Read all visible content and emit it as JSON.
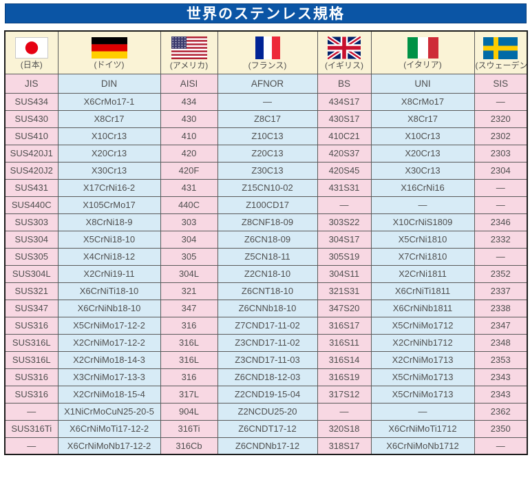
{
  "title": "世界のステンレス規格",
  "columns": [
    {
      "code": "JIS",
      "country": "(日本)",
      "flag": "japan-flag",
      "tint": "pink"
    },
    {
      "code": "DIN",
      "country": "(ドイツ)",
      "flag": "germany-flag",
      "tint": "blue"
    },
    {
      "code": "AISI",
      "country": "(アメリカ)",
      "flag": "usa-flag",
      "tint": "pink"
    },
    {
      "code": "AFNOR",
      "country": "(フランス)",
      "flag": "france-flag",
      "tint": "blue"
    },
    {
      "code": "BS",
      "country": "(イギリス)",
      "flag": "uk-flag",
      "tint": "pink"
    },
    {
      "code": "UNI",
      "country": "(イタリア)",
      "flag": "italy-flag",
      "tint": "blue"
    },
    {
      "code": "SIS",
      "country": "(スウェーデン)",
      "flag": "sweden-flag",
      "tint": "pink"
    }
  ],
  "rows": [
    [
      "SUS434",
      "X6CrMo17-1",
      "434",
      "—",
      "434S17",
      "X8CrMo17",
      "—"
    ],
    [
      "SUS430",
      "X8Cr17",
      "430",
      "Z8C17",
      "430S17",
      "X8Cr17",
      "2320"
    ],
    [
      "SUS410",
      "X10Cr13",
      "410",
      "Z10C13",
      "410C21",
      "X10Cr13",
      "2302"
    ],
    [
      "SUS420J1",
      "X20Cr13",
      "420",
      "Z20C13",
      "420S37",
      "X20Cr13",
      "2303"
    ],
    [
      "SUS420J2",
      "X30Cr13",
      "420F",
      "Z30C13",
      "420S45",
      "X30Cr13",
      "2304"
    ],
    [
      "SUS431",
      "X17CrNi16-2",
      "431",
      "Z15CN10-02",
      "431S31",
      "X16CrNi16",
      "—"
    ],
    [
      "SUS440C",
      "X105CrMo17",
      "440C",
      "Z100CD17",
      "—",
      "—",
      "—"
    ],
    [
      "SUS303",
      "X8CrNi18-9",
      "303",
      "Z8CNF18-09",
      "303S22",
      "X10CrNiS1809",
      "2346"
    ],
    [
      "SUS304",
      "X5CrNi18-10",
      "304",
      "Z6CN18-09",
      "304S17",
      "X5CrNi1810",
      "2332"
    ],
    [
      "SUS305",
      "X4CrNi18-12",
      "305",
      "Z5CN18-11",
      "305S19",
      "X7CrNi1810",
      "—"
    ],
    [
      "SUS304L",
      "X2CrNi19-11",
      "304L",
      "Z2CN18-10",
      "304S11",
      "X2CrNi1811",
      "2352"
    ],
    [
      "SUS321",
      "X6CrNiTi18-10",
      "321",
      "Z6CNT18-10",
      "321S31",
      "X6CrNiTi1811",
      "2337"
    ],
    [
      "SUS347",
      "X6CrNiNb18-10",
      "347",
      "Z6CNNb18-10",
      "347S20",
      "X6CrNiNb1811",
      "2338"
    ],
    [
      "SUS316",
      "X5CrNiMo17-12-2",
      "316",
      "Z7CND17-11-02",
      "316S17",
      "X5CrNiMo1712",
      "2347"
    ],
    [
      "SUS316L",
      "X2CrNiMo17-12-2",
      "316L",
      "Z3CND17-11-02",
      "316S11",
      "X2CrNiNb1712",
      "2348"
    ],
    [
      "SUS316L",
      "X2CrNiMo18-14-3",
      "316L",
      "Z3CND17-11-03",
      "316S14",
      "X2CrNiMo1713",
      "2353"
    ],
    [
      "SUS316",
      "X3CrNiMo17-13-3",
      "316",
      "Z6CND18-12-03",
      "316S19",
      "X5CrNiMo1713",
      "2343"
    ],
    [
      "SUS316",
      "X2CrNiMo18-15-4",
      "317L",
      "Z2CND19-15-04",
      "317S12",
      "X5CrNiMo1713",
      "2343"
    ],
    [
      "—",
      "X1NiCrMoCuN25-20-5",
      "904L",
      "Z2NCDU25-20",
      "—",
      "—",
      "2362"
    ],
    [
      "SUS316Ti",
      "X6CrNiMoTi17-12-2",
      "316Ti",
      "Z6CNDT17-12",
      "320S18",
      "X6CrNiMoTi1712",
      "2350"
    ],
    [
      "—",
      "X6CrNiMoNb17-12-2",
      "316Cb",
      "Z6CNDNb17-12",
      "318S17",
      "X6CrNiMoNb1712",
      "—"
    ]
  ],
  "colors": {
    "title_bg": "#0B55A5",
    "title_text": "#FFFFFF",
    "pink": "#F8D8E3",
    "blue": "#D7EBF6",
    "cream": "#FAF3D6",
    "text": "#4E4E4E",
    "border": "#5A5A5A",
    "outer_border": "#1B1B1B"
  }
}
